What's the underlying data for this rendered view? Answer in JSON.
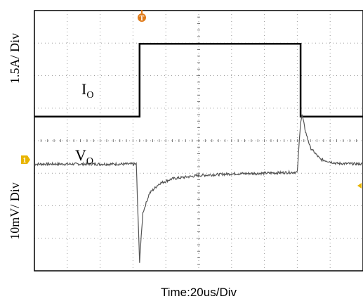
{
  "chart_data": {
    "type": "line",
    "title": "",
    "xlabel": "Time:20us/Div",
    "x_divisions": 10,
    "y_divisions": 8,
    "grid": true,
    "panels": [
      {
        "ylabel": "1.5A/ Div",
        "series": [
          {
            "name": "I_O",
            "label_main": "I",
            "label_sub": "O",
            "color": "#000000",
            "x": [
              0,
              3.2,
              3.2,
              8.1,
              8.1,
              10
            ],
            "y": [
              0,
              0,
              1,
              1,
              0,
              0
            ]
          }
        ]
      },
      {
        "ylabel": "10mV/ Div",
        "series": [
          {
            "name": "V_O",
            "label_main": "V",
            "label_sub": "O",
            "color": "#555555",
            "x": [
              0,
              3.1,
              3.2,
              3.3,
              3.5,
              3.8,
              4.2,
              5,
              6,
              7,
              8.0,
              8.1,
              8.15,
              8.25,
              8.4,
              8.7,
              9.2,
              10
            ],
            "y": [
              0,
              0,
              -3,
              -1.5,
              -0.9,
              -0.6,
              -0.45,
              -0.35,
              -0.3,
              -0.28,
              -0.25,
              1.3,
              1.5,
              1.0,
              0.5,
              0.15,
              0.02,
              0
            ]
          }
        ]
      }
    ]
  },
  "markers": {
    "trigger_glyph": "T",
    "channel_glyph": "1",
    "trigger_color": "#e07b1a",
    "channel_color": "#e8b400"
  }
}
